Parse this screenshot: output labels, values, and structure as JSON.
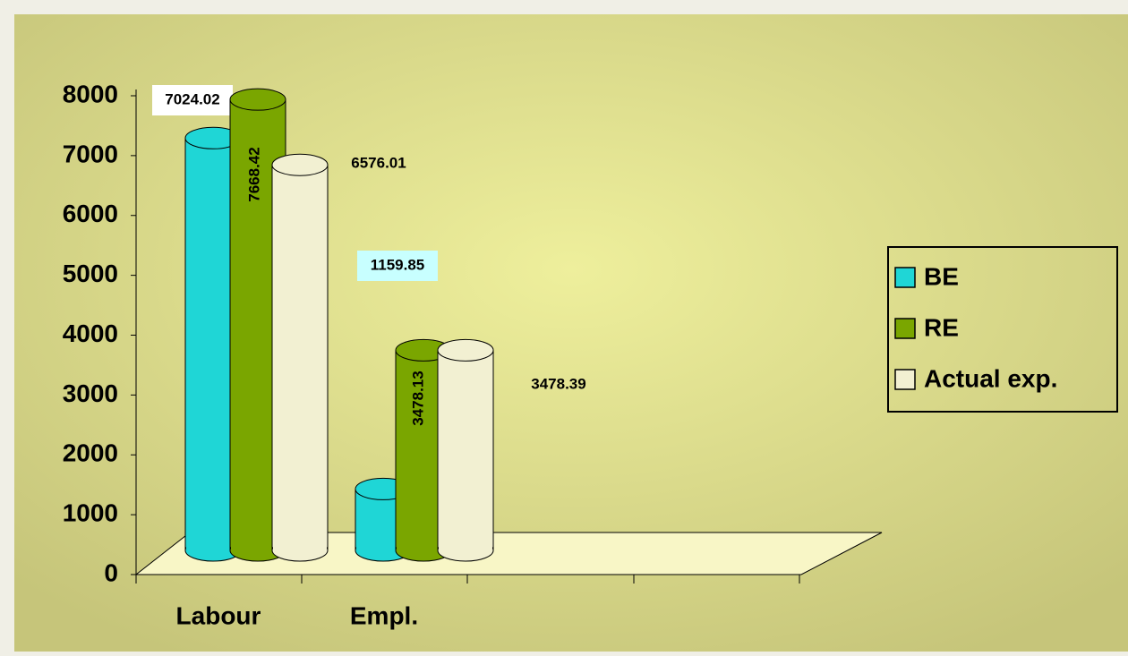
{
  "chart_data": {
    "type": "bar",
    "categories": [
      "Labour",
      "Empl."
    ],
    "series": [
      {
        "name": "BE",
        "color": "#1fd6d6",
        "values": [
          7024.02,
          1159.85
        ]
      },
      {
        "name": "RE",
        "color": "#7aa600",
        "values": [
          7668.42,
          3478.13
        ]
      },
      {
        "name": "Actual exp.",
        "color": "#f2f0d2",
        "values": [
          6576.01,
          3478.39
        ]
      }
    ],
    "ylim": [
      0,
      8000
    ],
    "yticks": [
      0,
      1000,
      2000,
      3000,
      4000,
      5000,
      6000,
      7000,
      8000
    ],
    "legend": "right"
  }
}
